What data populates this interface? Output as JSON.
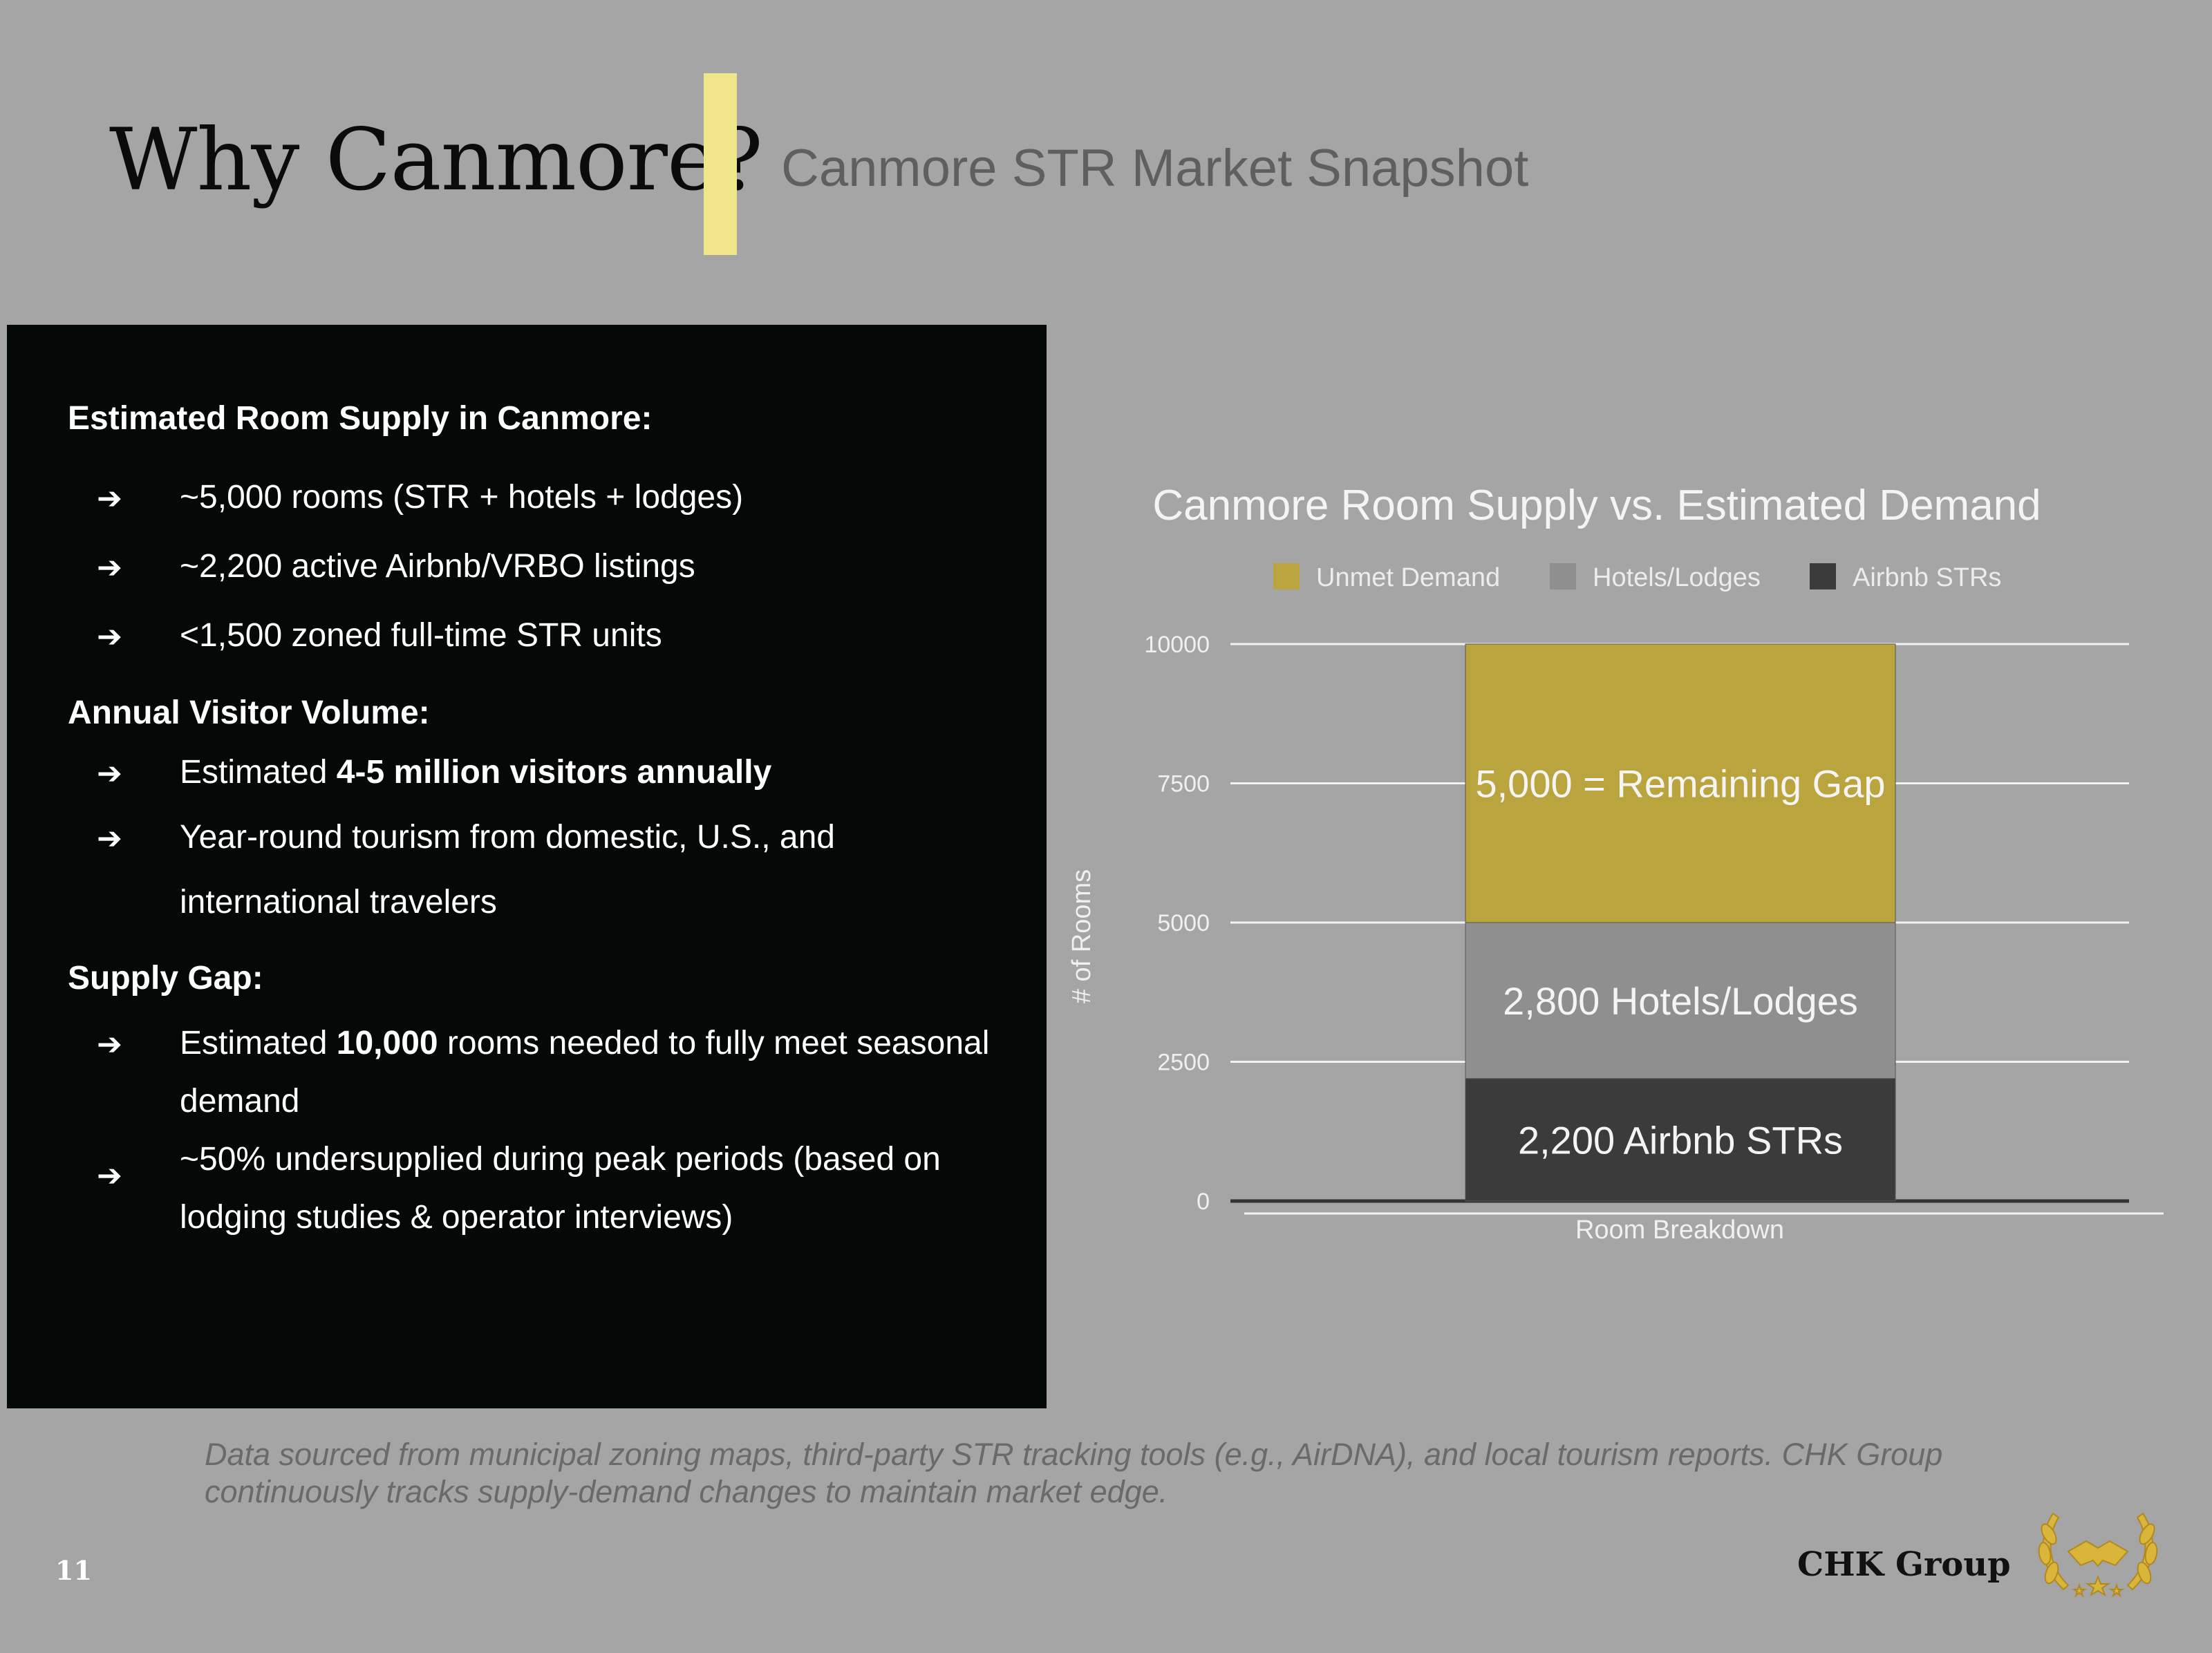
{
  "header": {
    "title": "Why Canmore?",
    "subtitle": "Canmore STR Market Snapshot",
    "accent_color": "#f0e58a"
  },
  "panel": {
    "supply_heading": "Estimated Room Supply in Canmore:",
    "supply_items": [
      "~5,000 rooms (STR + hotels + lodges)",
      "~2,200 active Airbnb/VRBO listings",
      "<1,500 zoned full-time STR units"
    ],
    "visitor_heading": "Annual Visitor Volume:",
    "visitor_item_1_pre": "Estimated ",
    "visitor_item_1_bold": "4-5 million visitors annually",
    "visitor_item_2_line1": "Year-round tourism from domestic, U.S., and",
    "visitor_item_2_line2": "international travelers",
    "gap_heading": "Supply Gap:",
    "gap_item_1_pre": "Estimated ",
    "gap_item_1_bold": "10,000",
    "gap_item_1_post": " rooms needed to fully meet seasonal",
    "gap_item_1_line2": "demand",
    "gap_item_2_line1": "~50% undersupplied during peak periods (based on",
    "gap_item_2_line2": "lodging studies & operator interviews)",
    "arrow_glyph": "➔"
  },
  "chart_data": {
    "type": "bar",
    "stacked": true,
    "title": "Canmore Room Supply vs. Estimated Demand",
    "xlabel": "Room Breakdown",
    "ylabel": "# of Rooms",
    "categories": [
      ""
    ],
    "ylim": [
      0,
      10000
    ],
    "yticks": [
      "0",
      "2500",
      "5000",
      "7500",
      "10000"
    ],
    "legend_position": "top",
    "grid": true,
    "series": [
      {
        "name": "Airbnb STRs",
        "values": [
          2200
        ],
        "color": "#3b3b3b",
        "label": "2,200 Airbnb STRs"
      },
      {
        "name": "Hotels/Lodges",
        "values": [
          2800
        ],
        "color": "#8f8f8f",
        "label": "2,800 Hotels/Lodges"
      },
      {
        "name": "Unmet Demand",
        "values": [
          5000
        ],
        "color": "#b9a43d",
        "label": "5,000 = Remaining Gap"
      }
    ],
    "legend_order": [
      "Unmet Demand",
      "Hotels/Lodges",
      "Airbnb STRs"
    ]
  },
  "footer": {
    "note": "Data sourced from municipal zoning maps, third-party STR tracking tools (e.g., AirDNA), and local tourism reports. CHK Group continuously tracks supply-demand changes to maintain market edge.",
    "page_number": "11",
    "company": "CHK Group",
    "logo_icon": "laurel-handshake-icon"
  }
}
